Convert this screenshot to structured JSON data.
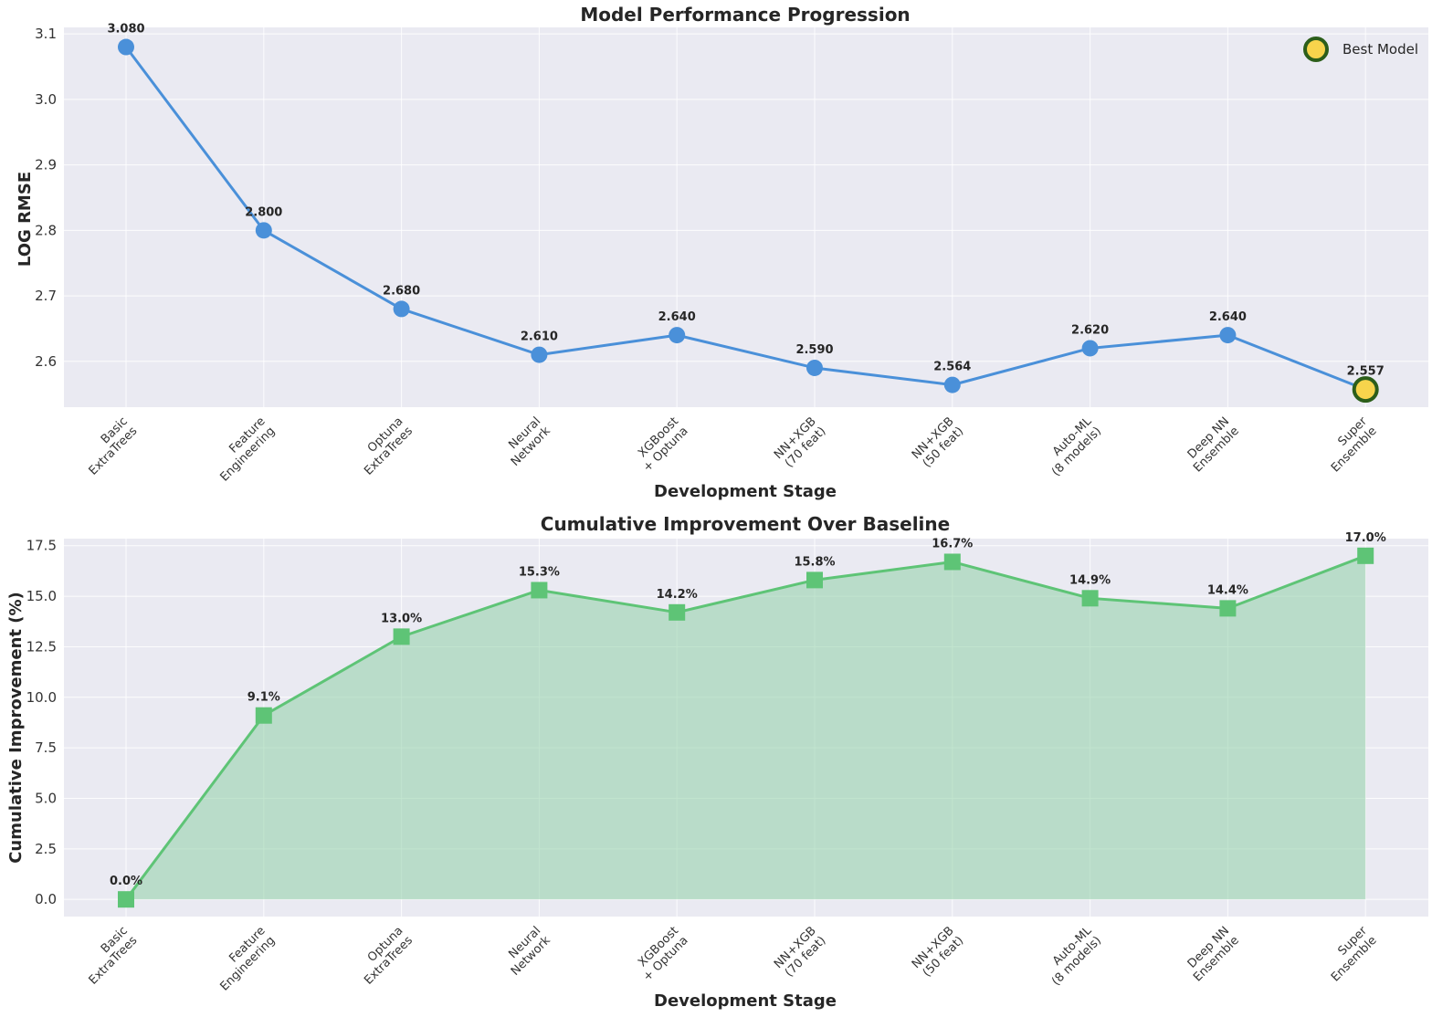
{
  "chart_data": [
    {
      "type": "line",
      "title": "Model Performance Progression",
      "xlabel": "Development Stage",
      "ylabel": "LOG RMSE",
      "categories": [
        [
          "Basic",
          "ExtraTrees"
        ],
        [
          "Feature",
          "Engineering"
        ],
        [
          "Optuna",
          "ExtraTrees"
        ],
        [
          "Neural",
          "Network"
        ],
        [
          "XGBoost",
          "+ Optuna"
        ],
        [
          "NN+XGB",
          "(70 feat)"
        ],
        [
          "NN+XGB",
          "(50 feat)"
        ],
        [
          "Auto-ML",
          "(8 models)"
        ],
        [
          "Deep NN",
          "Ensemble"
        ],
        [
          "Super",
          "Ensemble"
        ]
      ],
      "values": [
        3.08,
        2.8,
        2.68,
        2.61,
        2.64,
        2.59,
        2.564,
        2.62,
        2.64,
        2.557
      ],
      "value_labels": [
        "3.080",
        "2.800",
        "2.680",
        "2.610",
        "2.640",
        "2.590",
        "2.564",
        "2.620",
        "2.640",
        "2.557"
      ],
      "ylim": [
        2.53,
        3.11
      ],
      "yticks": [
        2.6,
        2.7,
        2.8,
        2.9,
        3.0,
        3.1
      ],
      "ytick_labels": [
        "2.6",
        "2.7",
        "2.8",
        "2.9",
        "3.0",
        "3.1"
      ],
      "grid": true,
      "line_color": "#4a90d9",
      "highlight": {
        "index": 9,
        "fill": "#f7d44c",
        "stroke": "#2c5e1a"
      },
      "legend": {
        "position": "top-right",
        "entries": [
          "Best Model"
        ]
      }
    },
    {
      "type": "area",
      "title": "Cumulative Improvement Over Baseline",
      "xlabel": "Development Stage",
      "ylabel": "Cumulative Improvement (%)",
      "categories": [
        [
          "Basic",
          "ExtraTrees"
        ],
        [
          "Feature",
          "Engineering"
        ],
        [
          "Optuna",
          "ExtraTrees"
        ],
        [
          "Neural",
          "Network"
        ],
        [
          "XGBoost",
          "+ Optuna"
        ],
        [
          "NN+XGB",
          "(70 feat)"
        ],
        [
          "NN+XGB",
          "(50 feat)"
        ],
        [
          "Auto-ML",
          "(8 models)"
        ],
        [
          "Deep NN",
          "Ensemble"
        ],
        [
          "Super",
          "Ensemble"
        ]
      ],
      "values": [
        0.0,
        9.1,
        13.0,
        15.3,
        14.2,
        15.8,
        16.7,
        14.9,
        14.4,
        17.0
      ],
      "value_labels": [
        "0.0%",
        "9.1%",
        "13.0%",
        "15.3%",
        "14.2%",
        "15.8%",
        "16.7%",
        "14.9%",
        "14.4%",
        "17.0%"
      ],
      "ylim": [
        -0.85,
        17.85
      ],
      "yticks": [
        0.0,
        2.5,
        5.0,
        7.5,
        10.0,
        12.5,
        15.0,
        17.5
      ],
      "ytick_labels": [
        "0.0",
        "2.5",
        "5.0",
        "7.5",
        "10.0",
        "12.5",
        "15.0",
        "17.5"
      ],
      "grid": true,
      "line_color": "#5ec476",
      "fill_color": "#8fcfa8"
    }
  ]
}
